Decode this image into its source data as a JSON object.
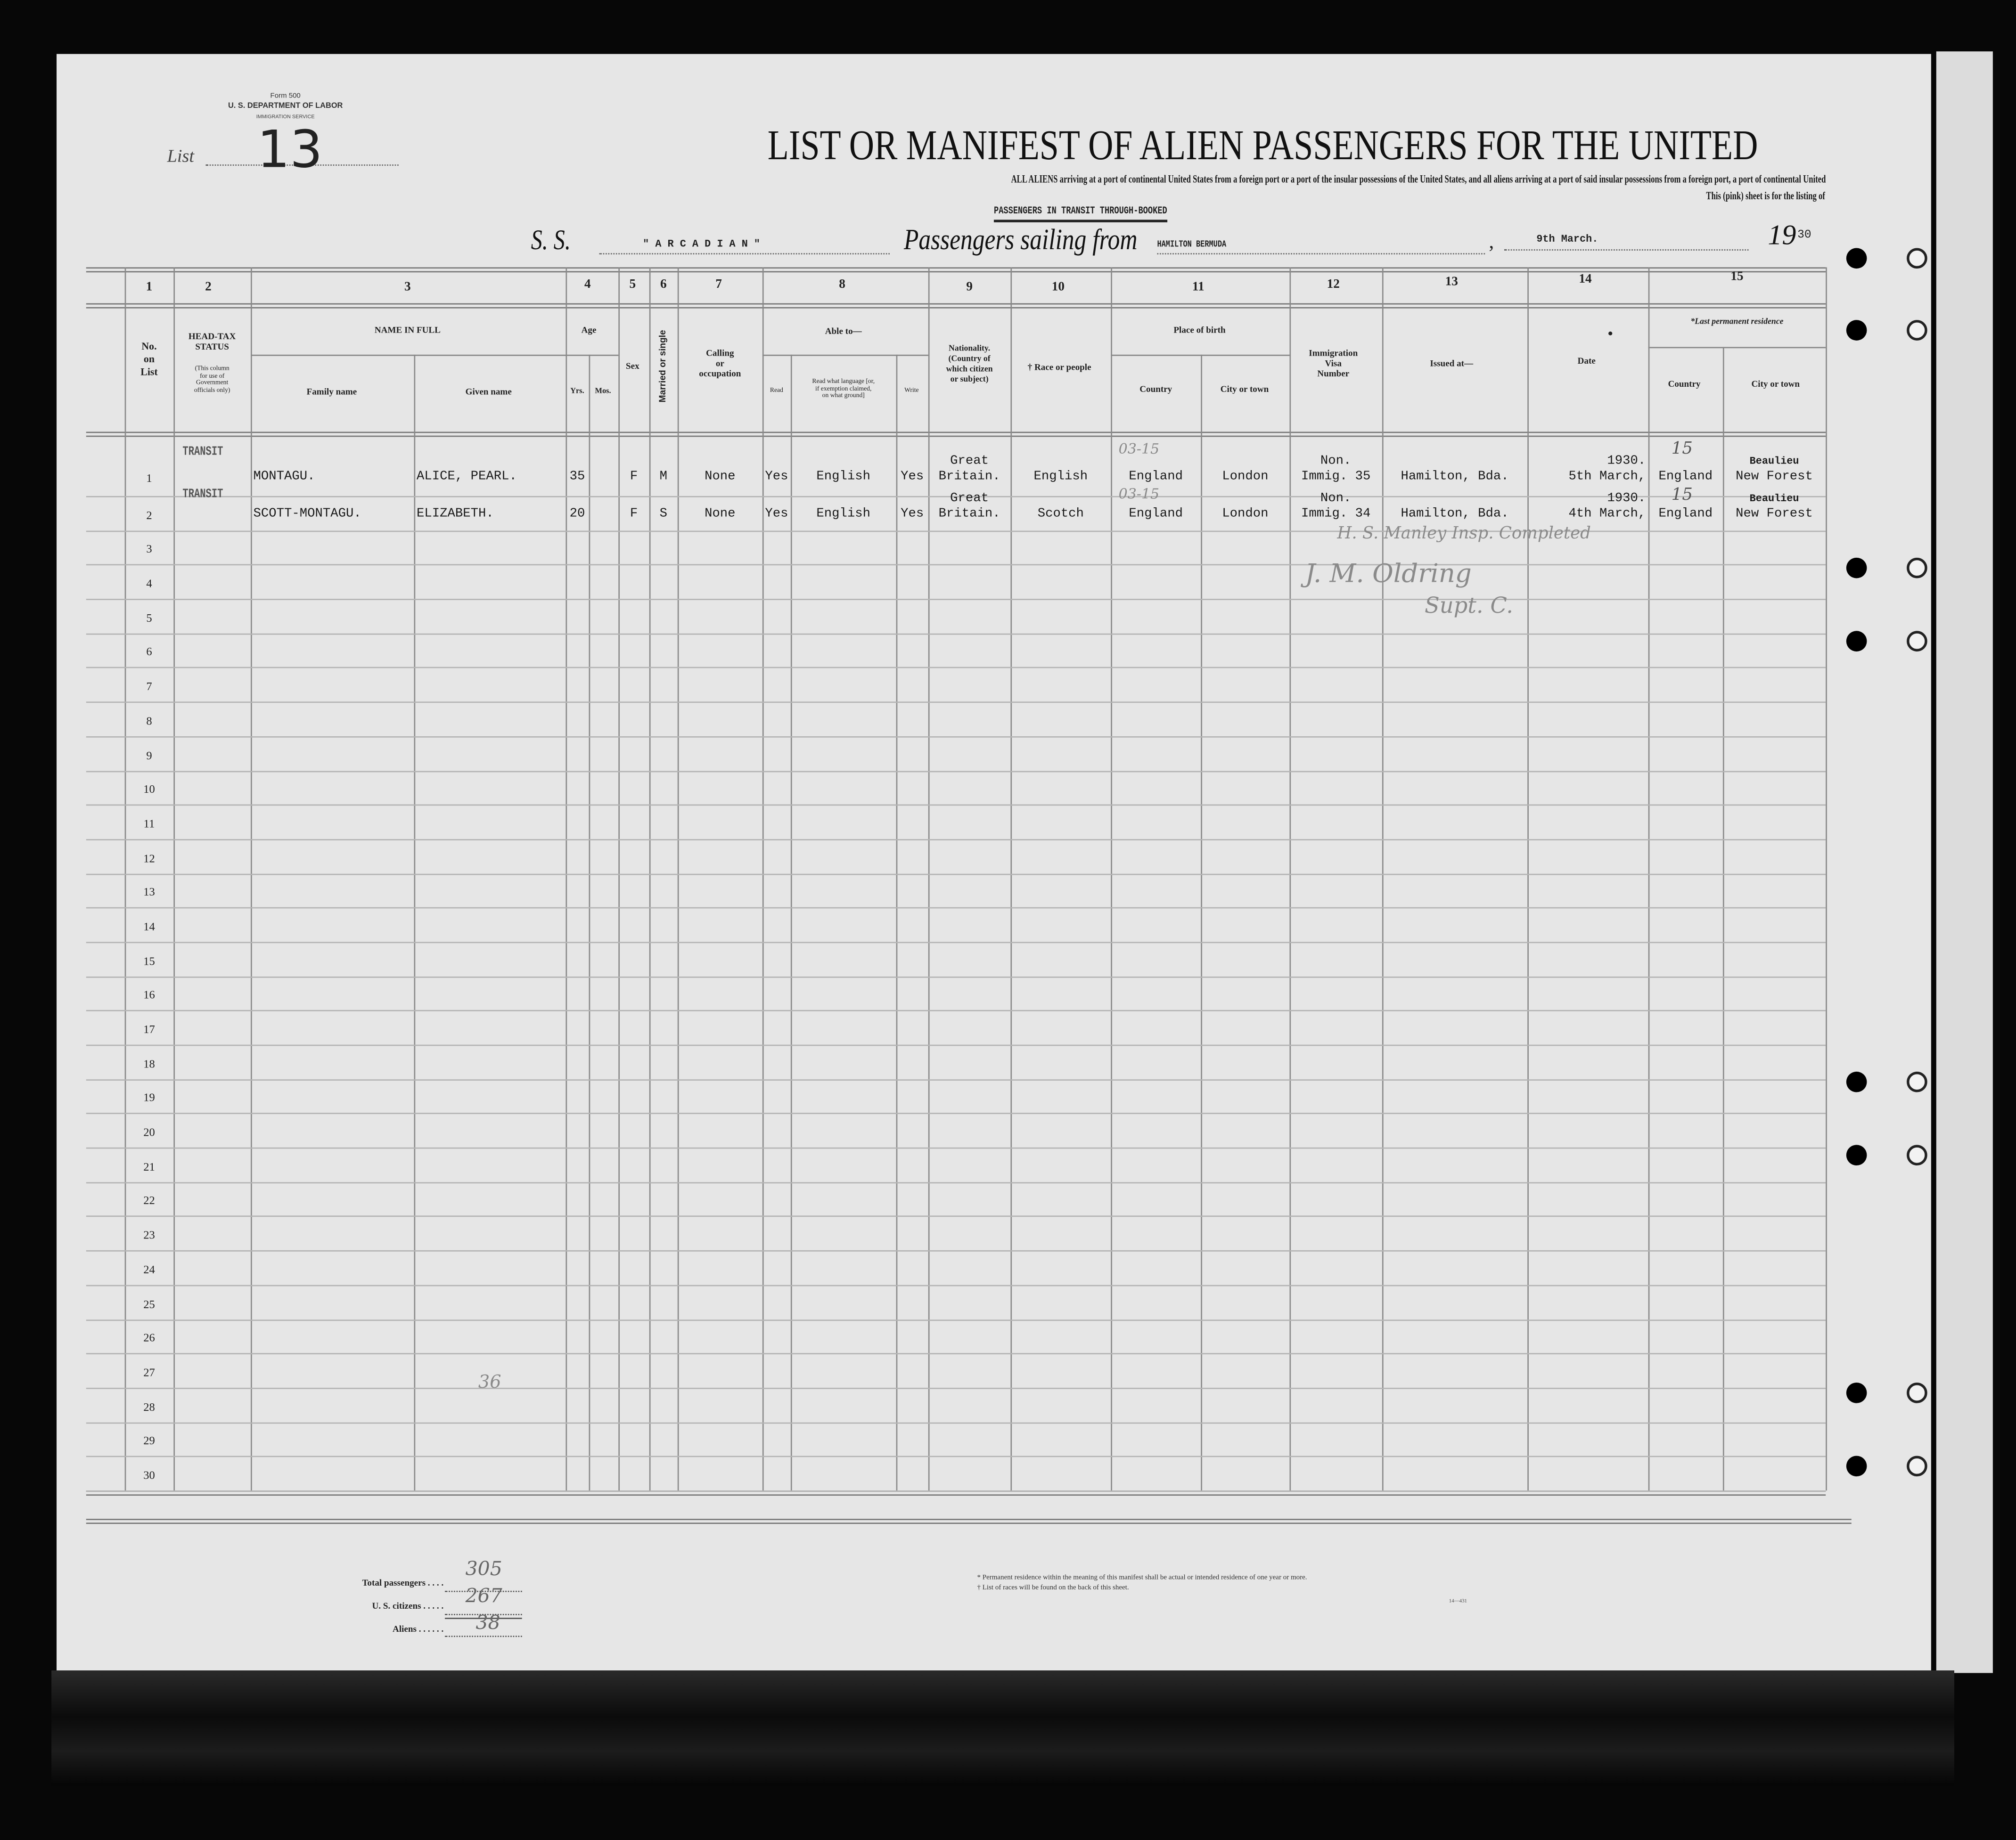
{
  "form": {
    "form_number": "Form 500",
    "department": "U. S. DEPARTMENT OF LABOR",
    "service": "IMMIGRATION SERVICE",
    "list_label": "List",
    "list_number": "13"
  },
  "title": "LIST OR MANIFEST OF ALIEN PASSENGERS FOR THE UNITED",
  "instructions_line1": "ALL ALIENS arriving at a port of continental United States from a foreign port or a port of the insular possessions of the United States, and all aliens arriving at a port of said insular possessions from a foreign port, a port of continental United",
  "instructions_line2": "This (pink) sheet is for the listing of",
  "category": "PASSENGERS IN TRANSIT THROUGH-BOOKED",
  "voyage": {
    "ss_label": "S. S.",
    "ship": "\" A R C A D I A N \"",
    "sailing_label": "Passengers sailing from",
    "port": "HAMILTON BERMUDA",
    "date": "9th March.",
    "year_prefix": "19",
    "year_suffix": "30"
  },
  "column_numbers": [
    "1",
    "2",
    "3",
    "4",
    "5",
    "6",
    "7",
    "8",
    "9",
    "10",
    "11",
    "12",
    "13",
    "14",
    "15"
  ],
  "headers": {
    "no_on_list": [
      "No.",
      "on",
      "List"
    ],
    "head_tax": [
      "HEAD-TAX",
      "STATUS"
    ],
    "head_tax_note": [
      "(This column",
      "for use of",
      "Government",
      "officials only)"
    ],
    "name_in_full": "NAME IN FULL",
    "family_name": "Family name",
    "given_name": "Given name",
    "age": "Age",
    "yrs": "Yrs.",
    "mos": "Mos.",
    "sex": "Sex",
    "married_or_single": "Married or single",
    "calling": [
      "Calling",
      "or",
      "occupation"
    ],
    "able_to": "Able to—",
    "read": "Read",
    "read_language": [
      "Read what language [or,",
      "if exemption claimed,",
      "on what ground]"
    ],
    "write": "Write",
    "nationality": [
      "Nationality.",
      "(Country of",
      "which citizen",
      "or subject)"
    ],
    "race": "† Race or people",
    "place_of_birth": "Place of birth",
    "birth_country": "Country",
    "birth_city": "City or town",
    "visa": [
      "Immigration",
      "Visa",
      "Number"
    ],
    "issued_at": "Issued at—",
    "date": "Date",
    "last_residence": "*Last permanent residence",
    "res_country": "Country",
    "res_city": "City or town"
  },
  "rows": [
    {
      "no": "1",
      "head_tax": "TRANSIT",
      "family": "MONTAGU.",
      "given": "ALICE, PEARL.",
      "yrs": "35",
      "mos": "",
      "sex": "F",
      "marital": "M",
      "occupation": "None",
      "read": "Yes",
      "language": "English",
      "write": "Yes",
      "nationality": [
        "Great",
        "Britain."
      ],
      "race": "English",
      "birth_country": "England",
      "birth_city": "London",
      "visa": [
        "Non.",
        "Immig. 35"
      ],
      "issued": "Hamilton, Bda.",
      "date": [
        "1930.",
        "5th March,"
      ],
      "res_country": "England",
      "res_city": [
        "Beaulieu",
        "New Forest"
      ],
      "hand_birth": "03-15",
      "hand_res": "15"
    },
    {
      "no": "2",
      "head_tax": "TRANSIT",
      "family": "SCOTT-MONTAGU.",
      "given": "ELIZABETH.",
      "yrs": "20",
      "mos": "",
      "sex": "F",
      "marital": "S",
      "occupation": "None",
      "read": "Yes",
      "language": "English",
      "write": "Yes",
      "nationality": [
        "Great",
        "Britain."
      ],
      "race": "Scotch",
      "birth_country": "England",
      "birth_city": "London",
      "visa": [
        "Non.",
        "Immig. 34"
      ],
      "issued": "Hamilton, Bda.",
      "date": [
        "1930.",
        "4th March,"
      ],
      "res_country": "England",
      "res_city": [
        "Beaulieu",
        "New Forest"
      ],
      "hand_birth": "03-15",
      "hand_res": "15"
    },
    {
      "no": "3"
    },
    {
      "no": "4"
    },
    {
      "no": "5"
    },
    {
      "no": "6"
    },
    {
      "no": "7"
    },
    {
      "no": "8"
    },
    {
      "no": "9"
    },
    {
      "no": "10"
    },
    {
      "no": "11"
    },
    {
      "no": "12"
    },
    {
      "no": "13"
    },
    {
      "no": "14"
    },
    {
      "no": "15"
    },
    {
      "no": "16"
    },
    {
      "no": "17"
    },
    {
      "no": "18"
    },
    {
      "no": "19"
    },
    {
      "no": "20"
    },
    {
      "no": "21"
    },
    {
      "no": "22"
    },
    {
      "no": "23"
    },
    {
      "no": "24"
    },
    {
      "no": "25"
    },
    {
      "no": "26"
    },
    {
      "no": "27"
    },
    {
      "no": "28"
    },
    {
      "no": "29"
    },
    {
      "no": "30"
    }
  ],
  "annotations": {
    "signature_line1": "H. S. Manley Insp. Completed",
    "signature_line2": "J. M. Oldring",
    "signature_line3": "Supt. C.",
    "margin_number": "36"
  },
  "totals": {
    "total_label": "Total passengers . . . .",
    "total_value": "305",
    "citizens_label": "U. S. citizens . . . . .",
    "citizens_value": "267",
    "aliens_label": "Aliens . . . . . .",
    "aliens_value": "38"
  },
  "footnotes": {
    "residence": "* Permanent residence within the meaning of this manifest shall be actual or intended residence of one year or more.",
    "races": "† List of races will be found on the back of this sheet.",
    "form_code": "14—431"
  }
}
